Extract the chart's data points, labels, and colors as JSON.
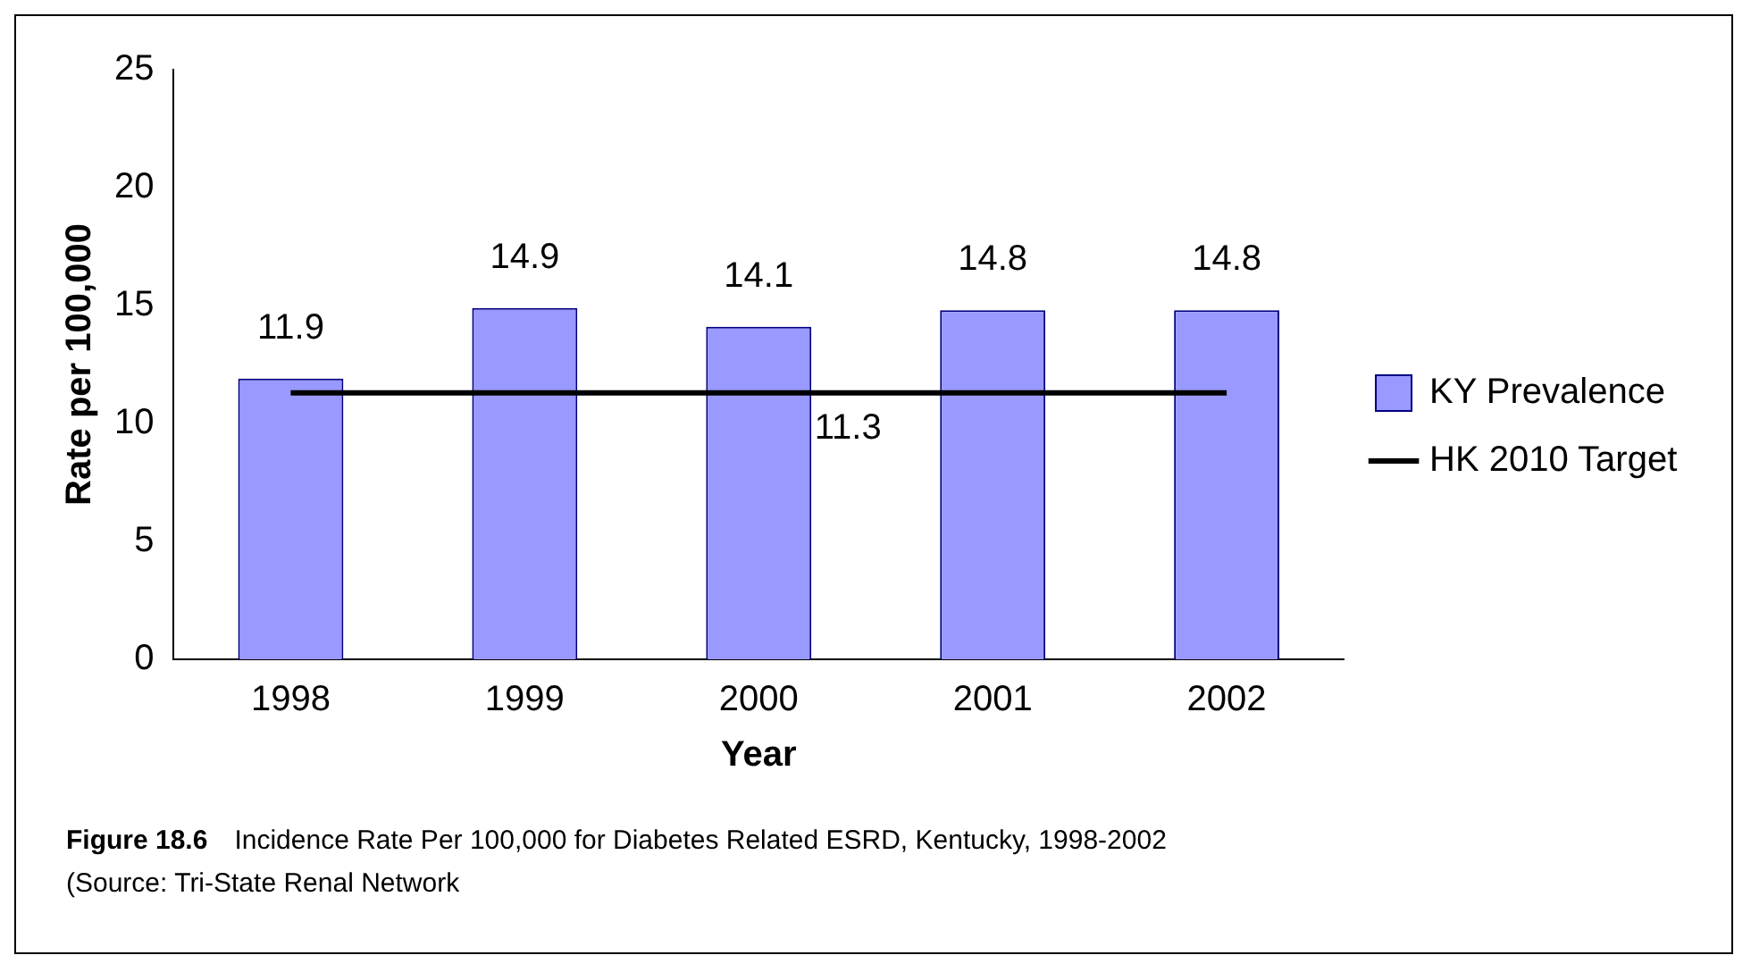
{
  "chart_data": {
    "type": "bar",
    "categories": [
      "1998",
      "1999",
      "2000",
      "2001",
      "2002"
    ],
    "series": [
      {
        "name": "KY Prevalence",
        "color": "#9999ff",
        "values": [
          11.9,
          14.9,
          14.1,
          14.8,
          14.8
        ],
        "value_labels": [
          "11.9",
          "14.9",
          "14.1",
          "14.8",
          "14.8"
        ]
      },
      {
        "name": "HK 2010 Target",
        "type": "line",
        "color": "#000000",
        "values": [
          11.3,
          11.3,
          11.3,
          11.3,
          11.3
        ],
        "value_labels": [
          null,
          null,
          "11.3",
          null,
          null
        ]
      }
    ],
    "xlabel": "Year",
    "ylabel": "Rate per 100,000",
    "ylim": [
      0,
      25
    ],
    "yticks": [
      0,
      5,
      10,
      15,
      20,
      25
    ],
    "grid": false,
    "legend": "right",
    "marker": "none",
    "annotations": [
      "Figure 18.6  Incidence Rate Per 100,000 for Diabetes Related ESRD, Kentucky, 1998-2002",
      "(Source: Tri-State Renal Network"
    ]
  }
}
